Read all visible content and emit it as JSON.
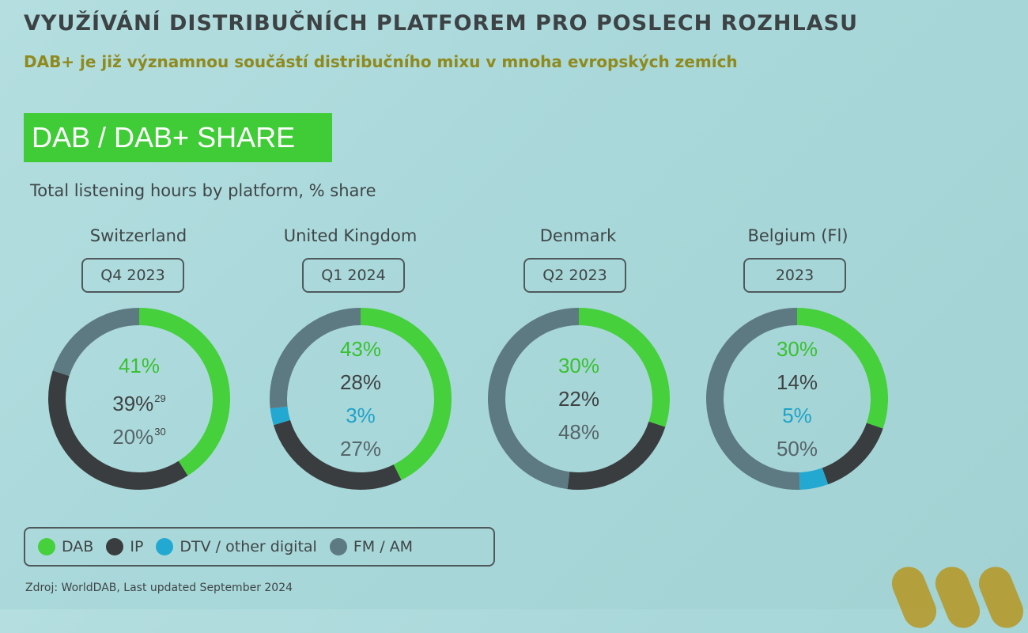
{
  "title": "VYUŽÍVÁNÍ DISTRIBUČNÍCH PLATFOREM PRO POSLECH ROZHLASU",
  "subtitle": "DAB+ je již významnou součástí distribučního mixu v mnoha evropských zemích",
  "banner": "DAB / DAB+ SHARE",
  "chart_caption": "Total listening hours by platform, % share",
  "colors": {
    "DAB": "#45d03c",
    "IP": "#3a3d3f",
    "DTV / other digital": "#23a9d1",
    "FM / AM": "#5d7a82",
    "banner_bg": "#3fcc36",
    "subtitle": "#8f8a1e"
  },
  "legend": [
    "DAB",
    "IP",
    "DTV / other digital",
    "FM / AM"
  ],
  "source": "Zdroj: WorldDAB, Last updated September 2024",
  "chart_data": [
    {
      "type": "pie",
      "title": "Switzerland",
      "period": "Q4 2023",
      "labels": [
        {
          "series": "DAB",
          "text": "41%",
          "note": ""
        },
        {
          "series": "IP",
          "text": "39%",
          "note": "29"
        },
        {
          "series": "FM / AM",
          "text": "20%",
          "note": "30"
        }
      ],
      "slices": [
        {
          "name": "DAB",
          "value": 41
        },
        {
          "name": "IP",
          "value": 39
        },
        {
          "name": "FM / AM",
          "value": 20
        }
      ]
    },
    {
      "type": "pie",
      "title": "United Kingdom",
      "period": "Q1 2024",
      "labels": [
        {
          "series": "DAB",
          "text": "43%",
          "note": ""
        },
        {
          "series": "IP",
          "text": "28%",
          "note": ""
        },
        {
          "series": "DTV / other digital",
          "text": "3%",
          "note": ""
        },
        {
          "series": "FM / AM",
          "text": "27%",
          "note": ""
        }
      ],
      "slices": [
        {
          "name": "DAB",
          "value": 43
        },
        {
          "name": "IP",
          "value": 28
        },
        {
          "name": "DTV / other digital",
          "value": 3
        },
        {
          "name": "FM / AM",
          "value": 27
        }
      ]
    },
    {
      "type": "pie",
      "title": "Denmark",
      "period": "Q2 2023",
      "labels": [
        {
          "series": "DAB",
          "text": "30%",
          "note": ""
        },
        {
          "series": "IP",
          "text": "22%",
          "note": ""
        },
        {
          "series": "FM / AM",
          "text": "48%",
          "note": ""
        }
      ],
      "slices": [
        {
          "name": "DAB",
          "value": 30
        },
        {
          "name": "IP",
          "value": 22
        },
        {
          "name": "FM / AM",
          "value": 48
        }
      ]
    },
    {
      "type": "pie",
      "title": "Belgium (Fl)",
      "period": "2023",
      "labels": [
        {
          "series": "DAB",
          "text": "30%",
          "note": ""
        },
        {
          "series": "IP",
          "text": "14%",
          "note": ""
        },
        {
          "series": "DTV / other digital",
          "text": "5%",
          "note": ""
        },
        {
          "series": "FM / AM",
          "text": "50%",
          "note": ""
        }
      ],
      "slices": [
        {
          "name": "DAB",
          "value": 30
        },
        {
          "name": "IP",
          "value": 14
        },
        {
          "name": "DTV / other digital",
          "value": 5
        },
        {
          "name": "FM / AM",
          "value": 50
        }
      ]
    }
  ]
}
